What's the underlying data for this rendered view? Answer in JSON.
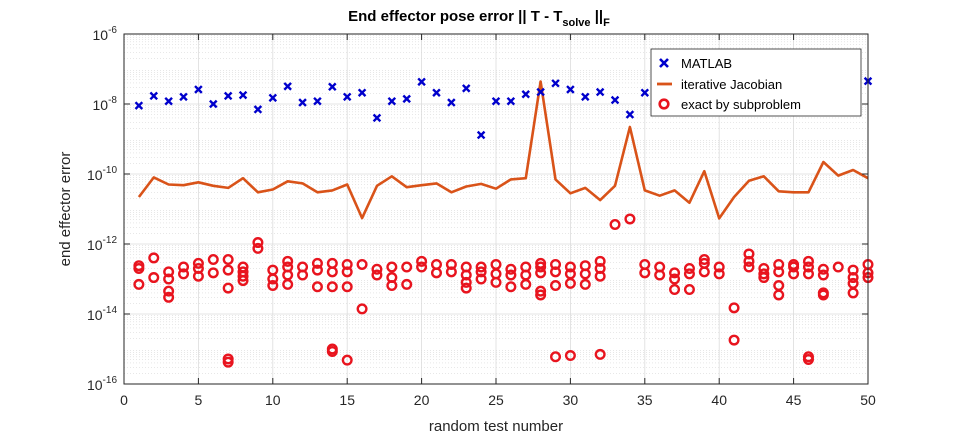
{
  "chart_data": {
    "type": "scatter",
    "title": {
      "main": "End effector pose error || T - T",
      "subscript1": "solve",
      "middle": " ||",
      "subscript2": "F"
    },
    "xlabel": "random test number",
    "ylabel": "end effector error",
    "xlim": [
      0,
      50
    ],
    "ylim": [
      1e-16,
      1e-06
    ],
    "yscale": "log",
    "grid": true,
    "minor_grid": true,
    "legend_position": "top-right",
    "x_ticks": [
      0,
      5,
      10,
      15,
      20,
      25,
      30,
      35,
      40,
      45,
      50
    ],
    "x_tick_labels": [
      "0",
      "5",
      "10",
      "15",
      "20",
      "25",
      "30",
      "35",
      "40",
      "45",
      "50"
    ],
    "y_ticks": [
      {
        "value": 1e-16,
        "base": "10",
        "exp": "-16"
      },
      {
        "value": 1e-14,
        "base": "10",
        "exp": "-14"
      },
      {
        "value": 1e-12,
        "base": "10",
        "exp": "-12"
      },
      {
        "value": 1e-10,
        "base": "10",
        "exp": "-10"
      },
      {
        "value": 1e-08,
        "base": "10",
        "exp": "-8"
      },
      {
        "value": 1e-06,
        "base": "10",
        "exp": "-6"
      }
    ],
    "series": [
      {
        "name": "MATLAB",
        "kind": "x-marker",
        "color": "#0000CC",
        "x": [
          1,
          2,
          3,
          4,
          5,
          6,
          7,
          8,
          9,
          10,
          11,
          12,
          13,
          14,
          15,
          16,
          17,
          18,
          19,
          20,
          21,
          22,
          23,
          24,
          25,
          26,
          27,
          28,
          29,
          30,
          31,
          32,
          33,
          34,
          35,
          36,
          37,
          38,
          39,
          40,
          41,
          42,
          43,
          44,
          45,
          46,
          47,
          48,
          49,
          50
        ],
        "y": [
          9e-09,
          1.7e-08,
          1.2e-08,
          1.6e-08,
          2.6e-08,
          1e-08,
          1.7e-08,
          1.8e-08,
          7e-09,
          1.5e-08,
          3.2e-08,
          1.1e-08,
          1.2e-08,
          3.1e-08,
          1.6e-08,
          2.1e-08,
          4e-09,
          1.2e-08,
          1.4e-08,
          4.3e-08,
          2.1e-08,
          1.1e-08,
          2.8e-08,
          1.3e-09,
          1.2e-08,
          1.2e-08,
          1.9e-08,
          2.2e-08,
          3.9e-08,
          2.6e-08,
          1.6e-08,
          2.2e-08,
          1.3e-08,
          5e-09,
          2.1e-08,
          2.6e-08,
          2.2e-08,
          3e-08,
          2.5e-08,
          2e-08,
          2.2e-08,
          2.6e-08,
          2.2e-08,
          2.8e-08,
          2.5e-08,
          2.3e-08,
          3e-08,
          3.2e-08,
          3.5e-08,
          4.5e-08
        ]
      },
      {
        "name": "iterative Jacobian",
        "kind": "line",
        "color": "#D95319",
        "x": [
          1,
          2,
          3,
          4,
          5,
          6,
          7,
          8,
          9,
          10,
          11,
          12,
          13,
          14,
          15,
          16,
          17,
          18,
          19,
          20,
          21,
          22,
          23,
          24,
          25,
          26,
          27,
          28,
          29,
          30,
          31,
          32,
          33,
          34,
          35,
          36,
          37,
          38,
          39,
          40,
          41,
          42,
          43,
          44,
          45,
          46,
          47,
          48,
          49,
          50
        ],
        "y": [
          2.2e-11,
          8e-11,
          5e-11,
          4.8e-11,
          5.8e-11,
          4.6e-11,
          4e-11,
          7.6e-11,
          3e-11,
          3.6e-11,
          6.2e-11,
          5.4e-11,
          3e-11,
          3.4e-11,
          5e-11,
          5.5e-12,
          4.6e-11,
          8.6e-11,
          4.2e-11,
          4.8e-11,
          5.4e-11,
          3e-11,
          4.4e-11,
          5.2e-11,
          3.8e-11,
          7e-11,
          7.6e-11,
          4.4e-08,
          7e-11,
          2.8e-11,
          4e-11,
          1.8e-11,
          4.6e-11,
          2.2e-09,
          3.4e-11,
          2.4e-11,
          3.4e-11,
          1.5e-11,
          1.2e-10,
          5.4e-12,
          2.2e-11,
          6.4e-11,
          8.6e-11,
          3.2e-11,
          3e-11,
          3e-11,
          2.2e-10,
          9e-11,
          1.3e-10,
          7.6e-11
        ]
      },
      {
        "name": "exact by subproblem",
        "kind": "circle-marker",
        "color": "#E8141E",
        "points": [
          [
            1,
            2.4e-13
          ],
          [
            1,
            2e-13
          ],
          [
            1,
            7e-14
          ],
          [
            2,
            4e-13
          ],
          [
            2,
            1.1e-13
          ],
          [
            3,
            1.6e-13
          ],
          [
            3,
            1e-13
          ],
          [
            3,
            4.5e-14
          ],
          [
            3,
            3e-14
          ],
          [
            4,
            2.2e-13
          ],
          [
            4,
            1.4e-13
          ],
          [
            5,
            2.8e-13
          ],
          [
            5,
            2e-13
          ],
          [
            5,
            1.2e-13
          ],
          [
            6,
            3.6e-13
          ],
          [
            6,
            1.5e-13
          ],
          [
            7,
            3.6e-13
          ],
          [
            7,
            1.8e-13
          ],
          [
            7,
            5.5e-14
          ],
          [
            7,
            5.2e-16
          ],
          [
            7,
            4.2e-16
          ],
          [
            8,
            2.2e-13
          ],
          [
            8,
            1.6e-13
          ],
          [
            8,
            1.2e-13
          ],
          [
            8,
            9e-14
          ],
          [
            9,
            1.1e-12
          ],
          [
            9,
            7.5e-13
          ],
          [
            10,
            1.8e-13
          ],
          [
            10,
            1e-13
          ],
          [
            10,
            6.5e-14
          ],
          [
            11,
            3.2e-13
          ],
          [
            11,
            2.2e-13
          ],
          [
            11,
            1.3e-13
          ],
          [
            11,
            7e-14
          ],
          [
            12,
            2.2e-13
          ],
          [
            12,
            1.3e-13
          ],
          [
            13,
            2.8e-13
          ],
          [
            13,
            1.8e-13
          ],
          [
            13,
            6e-14
          ],
          [
            14,
            2.8e-13
          ],
          [
            14,
            1.6e-13
          ],
          [
            14,
            6e-14
          ],
          [
            14,
            1e-15
          ],
          [
            14,
            8.5e-16
          ],
          [
            15,
            2.6e-13
          ],
          [
            15,
            1.6e-13
          ],
          [
            15,
            6e-14
          ],
          [
            15,
            4.8e-16
          ],
          [
            16,
            2.6e-13
          ],
          [
            16,
            1.4e-14
          ],
          [
            17,
            1.9e-13
          ],
          [
            17,
            1.3e-13
          ],
          [
            18,
            2.2e-13
          ],
          [
            18,
            1.1e-13
          ],
          [
            18,
            6.5e-14
          ],
          [
            19,
            2.2e-13
          ],
          [
            19,
            7e-14
          ],
          [
            20,
            3.2e-13
          ],
          [
            20,
            2.2e-13
          ],
          [
            21,
            2.6e-13
          ],
          [
            21,
            1.5e-13
          ],
          [
            22,
            2.6e-13
          ],
          [
            22,
            1.6e-13
          ],
          [
            23,
            2.2e-13
          ],
          [
            23,
            1.3e-13
          ],
          [
            23,
            8e-14
          ],
          [
            23,
            5.5e-14
          ],
          [
            24,
            2.2e-13
          ],
          [
            24,
            1.6e-13
          ],
          [
            24,
            1e-13
          ],
          [
            25,
            2.6e-13
          ],
          [
            25,
            1.4e-13
          ],
          [
            25,
            8e-14
          ],
          [
            26,
            1.9e-13
          ],
          [
            26,
            1.3e-13
          ],
          [
            26,
            6e-14
          ],
          [
            27,
            2.2e-13
          ],
          [
            27,
            1.3e-13
          ],
          [
            27,
            7e-14
          ],
          [
            28,
            2.8e-13
          ],
          [
            28,
            2.2e-13
          ],
          [
            28,
            1.5e-13
          ],
          [
            28,
            4.5e-14
          ],
          [
            28,
            3.5e-14
          ],
          [
            29,
            2.6e-13
          ],
          [
            29,
            1.6e-13
          ],
          [
            29,
            6.5e-14
          ],
          [
            29,
            6e-16
          ],
          [
            30,
            2.2e-13
          ],
          [
            30,
            1.4e-13
          ],
          [
            30,
            7.5e-14
          ],
          [
            30,
            6.5e-16
          ],
          [
            31,
            2.4e-13
          ],
          [
            31,
            1.4e-13
          ],
          [
            31,
            7e-14
          ],
          [
            32,
            3.2e-13
          ],
          [
            32,
            2e-13
          ],
          [
            32,
            1.2e-13
          ],
          [
            32,
            7e-16
          ],
          [
            33,
            3.6e-12
          ],
          [
            34,
            5.2e-12
          ],
          [
            35,
            2.6e-13
          ],
          [
            35,
            1.5e-13
          ],
          [
            36,
            2.2e-13
          ],
          [
            36,
            1.3e-13
          ],
          [
            37,
            1.5e-13
          ],
          [
            37,
            1e-13
          ],
          [
            37,
            5e-14
          ],
          [
            38,
            2e-13
          ],
          [
            38,
            1.4e-13
          ],
          [
            38,
            5e-14
          ],
          [
            39,
            3.6e-13
          ],
          [
            39,
            2.8e-13
          ],
          [
            39,
            1.6e-13
          ],
          [
            40,
            2.2e-13
          ],
          [
            40,
            1.4e-13
          ],
          [
            41,
            1.5e-14
          ],
          [
            41,
            1.8e-15
          ],
          [
            42,
            5.2e-13
          ],
          [
            42,
            3.2e-13
          ],
          [
            42,
            2.2e-13
          ],
          [
            43,
            2e-13
          ],
          [
            43,
            1.4e-13
          ],
          [
            43,
            1.1e-13
          ],
          [
            44,
            2.6e-13
          ],
          [
            44,
            1.6e-13
          ],
          [
            44,
            6.5e-14
          ],
          [
            44,
            3.5e-14
          ],
          [
            45,
            2.6e-13
          ],
          [
            45,
            2.2e-13
          ],
          [
            45,
            1.4e-13
          ],
          [
            46,
            3.2e-13
          ],
          [
            46,
            2.2e-13
          ],
          [
            46,
            1.4e-13
          ],
          [
            46,
            6e-16
          ],
          [
            46,
            5e-16
          ],
          [
            47,
            1.9e-13
          ],
          [
            47,
            1.3e-13
          ],
          [
            47,
            4e-14
          ],
          [
            47,
            3.5e-14
          ],
          [
            48,
            2.2e-13
          ],
          [
            49,
            1.8e-13
          ],
          [
            49,
            1.1e-13
          ],
          [
            49,
            7.5e-14
          ],
          [
            49,
            4e-14
          ],
          [
            50,
            2.6e-13
          ],
          [
            50,
            1.5e-13
          ],
          [
            50,
            1.1e-13
          ]
        ]
      }
    ]
  }
}
